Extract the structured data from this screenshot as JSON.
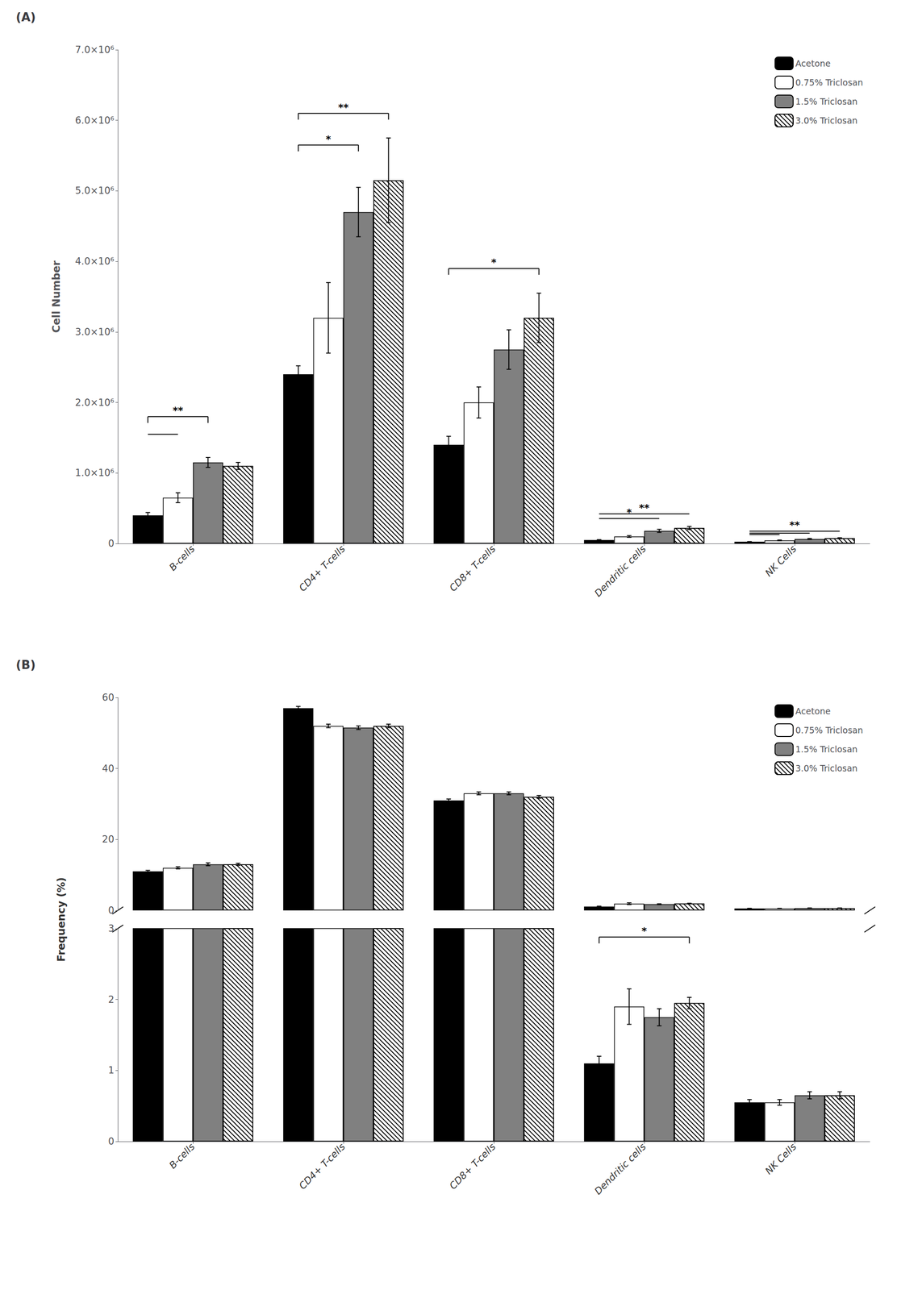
{
  "chart_data": [
    {
      "type": "bar",
      "title": "(A)",
      "categories": [
        "B-cells",
        "CD4+ T-cells",
        "CD8+ T-cells",
        "Dendritic cells",
        "NK Cells"
      ],
      "series": [
        {
          "name": "Acetone",
          "color": "#000000",
          "values": [
            400000,
            2400000,
            1400000,
            50000,
            25000
          ],
          "errors": [
            40000,
            120000,
            120000,
            5000,
            3000
          ]
        },
        {
          "name": "0.75% Triclosan",
          "color": "#ffffff",
          "values": [
            650000,
            3200000,
            2000000,
            100000,
            45000
          ],
          "errors": [
            70000,
            500000,
            220000,
            12000,
            5000
          ]
        },
        {
          "name": "1.5% Triclosan",
          "color": "#808080",
          "values": [
            1150000,
            4700000,
            2750000,
            180000,
            65000
          ],
          "errors": [
            70000,
            350000,
            280000,
            22000,
            7000
          ]
        },
        {
          "name": "3.0% Triclosan",
          "color": "#ffffff",
          "values": [
            1100000,
            5150000,
            3200000,
            220000,
            75000
          ],
          "errors": [
            50000,
            600000,
            350000,
            22000,
            7000
          ]
        }
      ],
      "ylabel": "Cell Number",
      "ylim": [
        0,
        7000000
      ],
      "yticks": [
        0,
        {
          "value": 1000000,
          "label": "1.0×10⁶"
        },
        {
          "value": 2000000,
          "label": "2.0×10⁶"
        },
        {
          "value": 3000000,
          "label": "3.0×10⁶"
        },
        {
          "value": 4000000,
          "label": "4.0×10⁶"
        },
        {
          "value": 5000000,
          "label": "5.0×10⁶"
        },
        {
          "value": 6000000,
          "label": "6.0×10⁶"
        },
        {
          "value": 7000000,
          "label": "7.0×10⁶"
        }
      ],
      "legend": "upper right",
      "grid": false,
      "annotations": [
        {
          "category": "B-cells",
          "from": "Acetone",
          "to": "1.5% Triclosan",
          "y": 1800000,
          "text": "**",
          "line_style": "bracket"
        },
        {
          "category": "B-cells",
          "from": "Acetone",
          "to": "0.75% Triclosan",
          "y": 1550000,
          "line_style": "plain"
        },
        {
          "category": "CD4+ T-cells",
          "from": "Acetone",
          "to": "3.0% Triclosan",
          "y": 6100000,
          "text": "**",
          "line_style": "bracket"
        },
        {
          "category": "CD4+ T-cells",
          "from": "Acetone",
          "to": "1.5% Triclosan",
          "y": 5650000,
          "text": "*",
          "line_style": "bracket"
        },
        {
          "category": "CD8+ T-cells",
          "from": "Acetone",
          "to": "3.0% Triclosan",
          "y": 3900000,
          "text": "*",
          "line_style": "bracket"
        },
        {
          "category": "Dendritic cells",
          "from": "Acetone",
          "to": "3.0% Triclosan",
          "y": 420000,
          "text": "**",
          "line_style": "plain"
        },
        {
          "category": "Dendritic cells",
          "from": "Acetone",
          "to": "1.5% Triclosan",
          "y": 355000,
          "text": "*",
          "line_style": "plain"
        },
        {
          "category": "NK Cells",
          "from": "Acetone",
          "to": "3.0% Triclosan",
          "y": 175000,
          "text": "**",
          "line_style": "plain"
        },
        {
          "category": "NK Cells",
          "from": "Acetone",
          "to": "1.5% Triclosan",
          "y": 148000,
          "line_style": "plain"
        },
        {
          "category": "NK Cells",
          "from": "Acetone",
          "to": "0.75% Triclosan",
          "y": 128000,
          "line_style": "plain"
        }
      ]
    },
    {
      "type": "bar",
      "title": "(B)",
      "categories": [
        "B-cells",
        "CD4+ T-cells",
        "CD8+ T-cells",
        "Dendritic cells",
        "NK Cells"
      ],
      "series": [
        {
          "name": "Acetone",
          "color": "#000000",
          "values": [
            11.0,
            57.0,
            31.0,
            1.1,
            0.55
          ],
          "errors": [
            0.3,
            0.5,
            0.4,
            0.1,
            0.04
          ]
        },
        {
          "name": "0.75% Triclosan",
          "color": "#ffffff",
          "values": [
            12.0,
            52.0,
            33.0,
            1.9,
            0.55
          ],
          "errors": [
            0.3,
            0.5,
            0.4,
            0.25,
            0.04
          ]
        },
        {
          "name": "1.5% Triclosan",
          "color": "#808080",
          "values": [
            13.0,
            51.5,
            33.0,
            1.75,
            0.65
          ],
          "errors": [
            0.4,
            0.5,
            0.4,
            0.12,
            0.05
          ]
        },
        {
          "name": "3.0% Triclosan",
          "color": "#ffffff",
          "values": [
            13.0,
            52.0,
            32.0,
            1.95,
            0.65
          ],
          "errors": [
            0.3,
            0.5,
            0.4,
            0.08,
            0.05
          ]
        }
      ],
      "ylabel": "Frequency (%)",
      "segments": [
        {
          "ylim": [
            0,
            60
          ],
          "yticks": [
            0,
            20,
            40,
            60
          ]
        },
        {
          "ylim": [
            0,
            3
          ],
          "yticks": [
            0,
            1,
            2,
            3
          ]
        }
      ],
      "legend": "upper right",
      "grid": false,
      "annotations": [
        {
          "category": "Dendritic cells",
          "from": "Acetone",
          "to": "3.0% Triclosan",
          "y": 2.88,
          "text": "*",
          "line_style": "bracket"
        }
      ]
    }
  ]
}
